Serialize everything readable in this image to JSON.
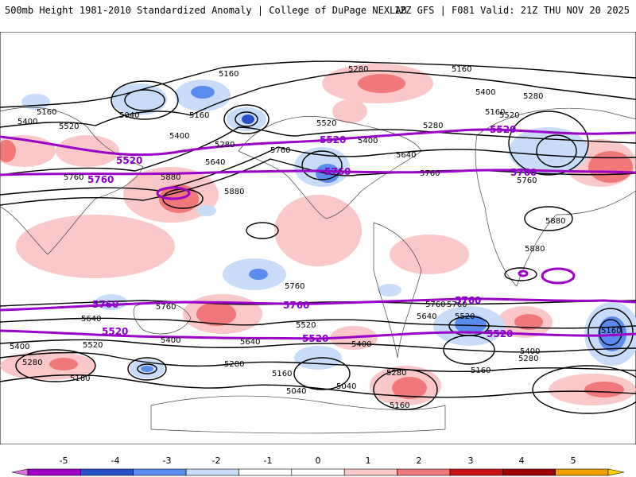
{
  "header": {
    "left": "500mb Height 1981-2010 Standardized Anomaly | College of DuPage NEXLAB",
    "right": "12Z GFS | F081 Valid: 21Z THU NOV 20 2025"
  },
  "colorbar": {
    "ticks": [
      "-5",
      "-4",
      "-3",
      "-2",
      "-1",
      "0",
      "1",
      "2",
      "3",
      "4",
      "5"
    ],
    "colors": [
      "#e070e0",
      "#9d00c8",
      "#2850c8",
      "#5a8cf0",
      "#c8dcfa",
      "#ffffff",
      "#ffffff",
      "#fac8c8",
      "#f07878",
      "#c81414",
      "#a00000",
      "#f0a000",
      "#ffd200"
    ]
  },
  "contour_labels": [
    {
      "id": "l1",
      "text": "5280"
    },
    {
      "id": "l2",
      "text": "5160"
    },
    {
      "id": "l3",
      "text": "5160"
    },
    {
      "id": "l4",
      "text": "5040"
    },
    {
      "id": "l5",
      "text": "5160"
    },
    {
      "id": "l6",
      "text": "5400"
    },
    {
      "id": "l7",
      "text": "5520"
    },
    {
      "id": "l8",
      "text": "5400"
    },
    {
      "id": "l9",
      "text": "5160"
    },
    {
      "id": "l10",
      "text": "5280"
    },
    {
      "id": "l11",
      "text": "5760"
    },
    {
      "id": "l12",
      "text": "5640"
    },
    {
      "id": "l13",
      "text": "5520"
    },
    {
      "id": "l14",
      "text": "5400"
    },
    {
      "id": "l15",
      "text": "5280"
    },
    {
      "id": "l16",
      "text": "5640"
    },
    {
      "id": "l17",
      "text": "5160"
    },
    {
      "id": "l18",
      "text": "5400"
    },
    {
      "id": "l19",
      "text": "5280"
    },
    {
      "id": "l20",
      "text": "5520"
    },
    {
      "id": "l21",
      "text": "5760"
    },
    {
      "id": "l22",
      "text": "5760"
    },
    {
      "id": "l23",
      "text": "5880"
    },
    {
      "id": "l24",
      "text": "5880"
    },
    {
      "id": "l25",
      "text": "5760"
    },
    {
      "id": "l26",
      "text": "5880"
    },
    {
      "id": "l27",
      "text": "5880"
    },
    {
      "id": "l28",
      "text": "5760"
    },
    {
      "id": "l29",
      "text": "5760"
    },
    {
      "id": "l30",
      "text": "5760"
    },
    {
      "id": "l31",
      "text": "5640"
    },
    {
      "id": "l32",
      "text": "5520"
    },
    {
      "id": "l33",
      "text": "5400"
    },
    {
      "id": "l34",
      "text": "5280"
    },
    {
      "id": "l35",
      "text": "5160"
    },
    {
      "id": "l36",
      "text": "5400"
    },
    {
      "id": "l37",
      "text": "5640"
    },
    {
      "id": "l38",
      "text": "5280"
    },
    {
      "id": "l39",
      "text": "5160"
    },
    {
      "id": "l40",
      "text": "5520"
    },
    {
      "id": "l41",
      "text": "5040"
    },
    {
      "id": "l42",
      "text": "5040"
    },
    {
      "id": "l43",
      "text": "5400"
    },
    {
      "id": "l44",
      "text": "5280"
    },
    {
      "id": "l45",
      "text": "5160"
    },
    {
      "id": "l46",
      "text": "5640"
    },
    {
      "id": "l47",
      "text": "5160"
    },
    {
      "id": "l48",
      "text": "5760"
    },
    {
      "id": "l49",
      "text": "5520"
    },
    {
      "id": "l50",
      "text": "5400"
    },
    {
      "id": "l51",
      "text": "5280"
    },
    {
      "id": "l52",
      "text": "5160"
    }
  ],
  "highlight_labels": [
    {
      "id": "p1",
      "text": "5520"
    },
    {
      "id": "p2",
      "text": "5520"
    },
    {
      "id": "p3",
      "text": "5520"
    },
    {
      "id": "p4",
      "text": "5760"
    },
    {
      "id": "p5",
      "text": "5760"
    },
    {
      "id": "p6",
      "text": "5760"
    },
    {
      "id": "p7",
      "text": "5760"
    },
    {
      "id": "p8",
      "text": "5760"
    },
    {
      "id": "p9",
      "text": "5760"
    },
    {
      "id": "p10",
      "text": "5520"
    },
    {
      "id": "p11",
      "text": "5520"
    },
    {
      "id": "p12",
      "text": "5520"
    }
  ]
}
